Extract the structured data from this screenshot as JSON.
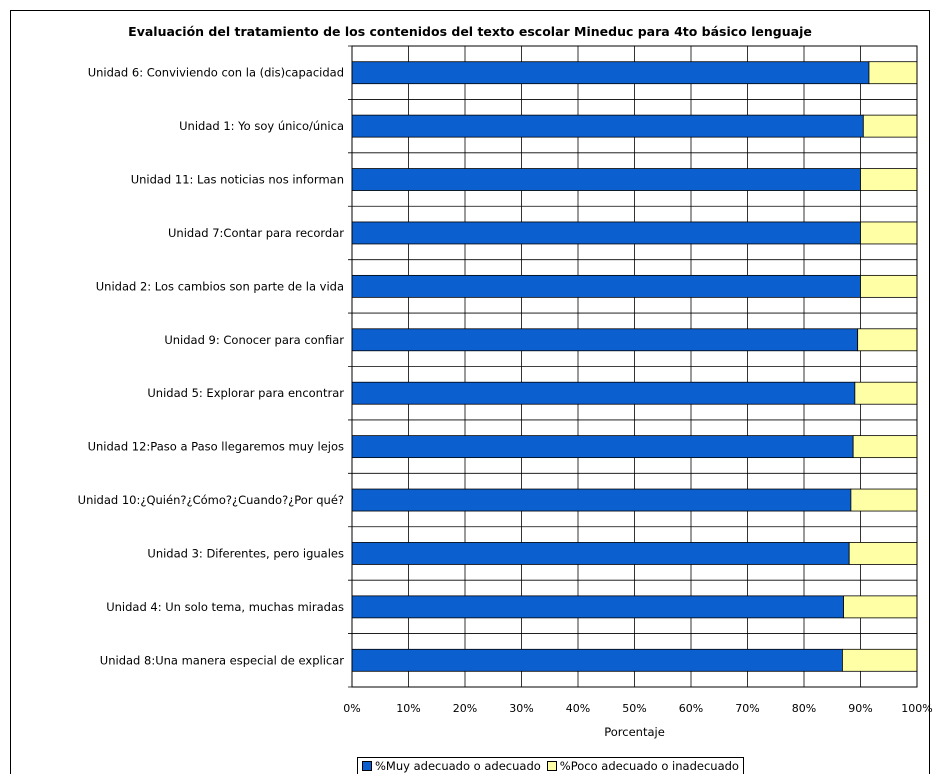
{
  "colors": {
    "series1": "#0c5fcf",
    "series2": "#ffffa6",
    "grid": "#000000"
  },
  "chart_data": {
    "type": "bar",
    "orientation": "horizontal",
    "stacked": "percent",
    "title": "Evaluación del tratamiento de los contenidos del texto escolar Mineduc para 4to básico lenguaje",
    "xlabel": "Porcentaje",
    "ylabel": "",
    "xlim": [
      0,
      100
    ],
    "xticks": [
      "0%",
      "10%",
      "20%",
      "30%",
      "40%",
      "50%",
      "60%",
      "70%",
      "80%",
      "90%",
      "100%"
    ],
    "grid": true,
    "legend_position": "bottom",
    "categories": [
      "Unidad 6: Conviviendo con la (dis)capacidad",
      "Unidad 1: Yo soy único/única",
      "Unidad 11: Las noticias nos informan",
      "Unidad 7:Contar para recordar",
      "Unidad 2: Los cambios son parte de la vida",
      "Unidad 9: Conocer para confiar",
      "Unidad 5: Explorar para encontrar",
      "Unidad 12:Paso a Paso llegaremos muy lejos",
      "Unidad 10:¿Quién?¿Cómo?¿Cuando?¿Por qué?",
      "Unidad 3: Diferentes, pero iguales",
      "Unidad 4: Un solo tema, muchas miradas",
      "Unidad 8:Una manera especial de explicar"
    ],
    "series": [
      {
        "name": "%Muy adecuado o adecuado",
        "values": [
          91.5,
          90.5,
          90,
          90,
          90,
          89.5,
          89,
          88.7,
          88.3,
          88,
          87,
          86.8
        ]
      },
      {
        "name": "%Poco adecuado o inadecuado",
        "values": [
          8.5,
          9.5,
          10,
          10,
          10,
          10.5,
          11,
          11.3,
          11.7,
          12,
          13,
          13.2
        ]
      }
    ]
  }
}
